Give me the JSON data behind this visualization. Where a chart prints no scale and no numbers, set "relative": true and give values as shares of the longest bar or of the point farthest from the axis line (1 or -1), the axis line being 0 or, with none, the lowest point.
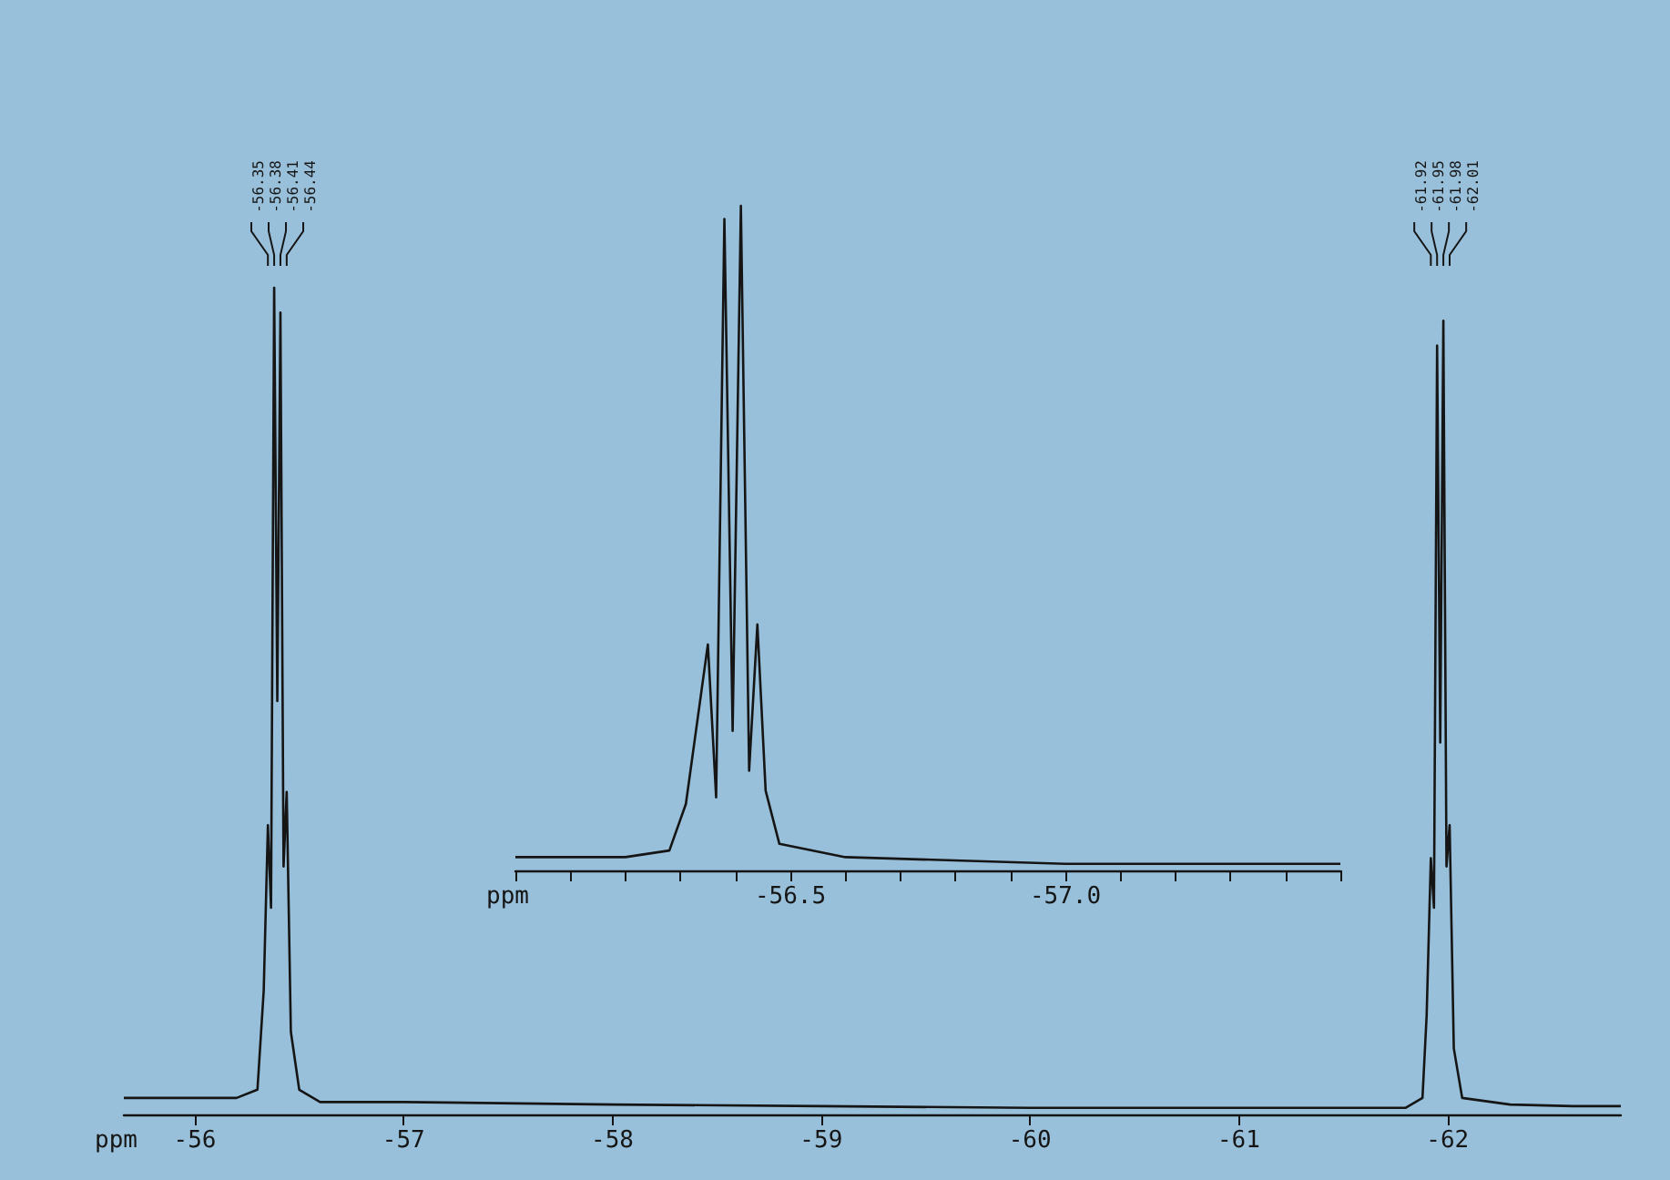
{
  "chart_data": [
    {
      "type": "line",
      "relative": true,
      "xlabel": "ppm",
      "color": "#151515",
      "xlim": [
        -55.66,
        -62.83
      ],
      "xticks": [
        -56,
        -57,
        -58,
        -59,
        -60,
        -61,
        -62
      ],
      "x": [
        -55.66,
        -55.9,
        -56.2,
        -56.3,
        -56.33,
        -56.35,
        -56.365,
        -56.38,
        -56.395,
        -56.41,
        -56.425,
        -56.44,
        -56.46,
        -56.5,
        -56.6,
        -57,
        -58,
        -59,
        -60,
        -61,
        -61.8,
        -61.88,
        -61.9,
        -61.92,
        -61.935,
        -61.95,
        -61.965,
        -61.98,
        -61.995,
        -62.01,
        -62.03,
        -62.07,
        -62.3,
        -62.6,
        -62.83
      ],
      "values": [
        0.02,
        0.02,
        0.02,
        0.03,
        0.15,
        0.35,
        0.25,
        1.0,
        0.5,
        0.97,
        0.3,
        0.39,
        0.1,
        0.03,
        0.015,
        0.015,
        0.012,
        0.01,
        0.008,
        0.008,
        0.008,
        0.02,
        0.12,
        0.31,
        0.25,
        0.93,
        0.45,
        0.96,
        0.3,
        0.35,
        0.08,
        0.02,
        0.012,
        0.01,
        0.01
      ],
      "annotations": [
        {
          "text": "-56.35",
          "x": -56.35
        },
        {
          "text": "-56.38",
          "x": -56.38
        },
        {
          "text": "-56.41",
          "x": -56.41
        },
        {
          "text": "-56.44",
          "x": -56.44
        },
        {
          "text": "-61.92",
          "x": -61.92
        },
        {
          "text": "-61.95",
          "x": -61.95
        },
        {
          "text": "-61.98",
          "x": -61.98
        },
        {
          "text": "-62.01",
          "x": -62.01
        }
      ]
    },
    {
      "type": "line",
      "relative": true,
      "xlabel": "ppm",
      "color": "#151515",
      "xlim": [
        -56.0,
        -57.5
      ],
      "xticks": [
        {
          "value": -56.0,
          "label": null
        },
        {
          "value": -56.1,
          "label": null
        },
        {
          "value": -56.2,
          "label": null
        },
        {
          "value": -56.3,
          "label": null
        },
        {
          "value": -56.4,
          "label": null
        },
        {
          "value": -56.5,
          "label": "-56.5"
        },
        {
          "value": -56.6,
          "label": null
        },
        {
          "value": -56.7,
          "label": null
        },
        {
          "value": -56.8,
          "label": null
        },
        {
          "value": -56.9,
          "label": null
        },
        {
          "value": -57.0,
          "label": "-57.0"
        },
        {
          "value": -57.1,
          "label": null
        },
        {
          "value": -57.2,
          "label": null
        },
        {
          "value": -57.3,
          "label": null
        },
        {
          "value": -57.4,
          "label": null
        },
        {
          "value": -57.5,
          "label": null
        }
      ],
      "x": [
        -56.0,
        -56.2,
        -56.28,
        -56.31,
        -56.35,
        -56.365,
        -56.38,
        -56.395,
        -56.41,
        -56.425,
        -56.44,
        -56.455,
        -56.48,
        -56.6,
        -57.0,
        -57.5
      ],
      "values": [
        0.02,
        0.02,
        0.03,
        0.1,
        0.34,
        0.11,
        0.98,
        0.21,
        1.0,
        0.15,
        0.37,
        0.12,
        0.04,
        0.02,
        0.01,
        0.01
      ]
    }
  ]
}
